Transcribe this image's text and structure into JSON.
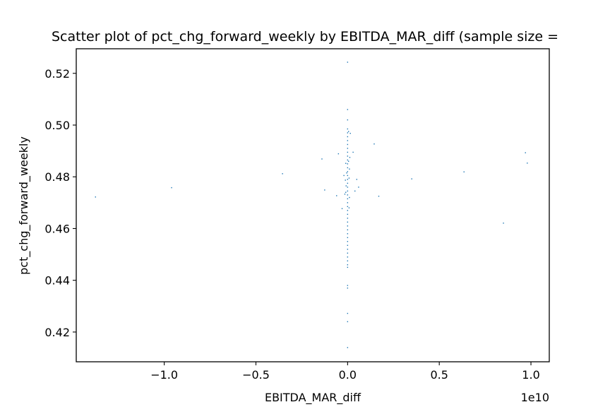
{
  "chart_data": {
    "type": "scatter",
    "title": "Scatter plot of pct_chg_forward_weekly by EBITDA_MAR_diff (sample size = ",
    "xlabel": "EBITDA_MAR_diff",
    "ylabel": "pct_chg_forward_weekly",
    "x_multiplier_label": "1e10",
    "xlim": [
      -1.48,
      1.1
    ],
    "ylim": [
      0.4085,
      0.5295
    ],
    "x_ticks": [
      -1.0,
      -0.5,
      0.0,
      0.5,
      1.0
    ],
    "x_tick_labels": [
      "−1.0",
      "−0.5",
      "0.0",
      "0.5",
      "1.0"
    ],
    "y_ticks": [
      0.42,
      0.44,
      0.46,
      0.48,
      0.5,
      0.52
    ],
    "y_tick_labels": [
      "0.42",
      "0.44",
      "0.46",
      "0.48",
      "0.50",
      "0.52"
    ],
    "grid": false,
    "marker_color": "#1f77b4",
    "series": [
      {
        "points": [
          [
            -1.375,
            0.4722
          ],
          [
            -0.96,
            0.4758
          ],
          [
            -0.355,
            0.4812
          ],
          [
            -0.14,
            0.4869
          ],
          [
            -0.125,
            0.4749
          ],
          [
            -0.06,
            0.4727
          ],
          [
            -0.05,
            0.4889
          ],
          [
            -0.03,
            0.4677
          ],
          [
            -0.02,
            0.4805
          ],
          [
            -0.015,
            0.4733
          ],
          [
            -0.01,
            0.4852
          ],
          [
            0.03,
            0.4895
          ],
          [
            0.04,
            0.4745
          ],
          [
            0.05,
            0.479
          ],
          [
            0.06,
            0.476
          ],
          [
            0.145,
            0.4927
          ],
          [
            0.17,
            0.4725
          ],
          [
            0.35,
            0.4792
          ],
          [
            0.635,
            0.4819
          ],
          [
            0.85,
            0.4621
          ],
          [
            0.97,
            0.4893
          ],
          [
            0.98,
            0.4853
          ],
          [
            0.0,
            0.5243
          ],
          [
            0.0,
            0.506
          ],
          [
            0.0,
            0.502
          ],
          [
            0.0,
            0.4985
          ],
          [
            0.0,
            0.497
          ],
          [
            0.0,
            0.4955
          ],
          [
            0.0,
            0.494
          ],
          [
            0.0,
            0.4925
          ],
          [
            0.0,
            0.491
          ],
          [
            0.0,
            0.4895
          ],
          [
            0.0,
            0.488
          ],
          [
            0.0,
            0.4865
          ],
          [
            0.0,
            0.485
          ],
          [
            0.0,
            0.4835
          ],
          [
            0.0,
            0.482
          ],
          [
            0.0,
            0.4805
          ],
          [
            0.0,
            0.479
          ],
          [
            0.0,
            0.4775
          ],
          [
            0.0,
            0.476
          ],
          [
            0.0,
            0.4745
          ],
          [
            0.0,
            0.473
          ],
          [
            0.0,
            0.4715
          ],
          [
            0.0,
            0.47
          ],
          [
            0.0,
            0.4685
          ],
          [
            0.0,
            0.467
          ],
          [
            0.0,
            0.4655
          ],
          [
            0.0,
            0.464
          ],
          [
            0.0,
            0.4625
          ],
          [
            0.0,
            0.461
          ],
          [
            0.0,
            0.4595
          ],
          [
            0.0,
            0.458
          ],
          [
            0.0,
            0.4565
          ],
          [
            0.0,
            0.455
          ],
          [
            0.0,
            0.4535
          ],
          [
            0.0,
            0.452
          ],
          [
            0.0,
            0.4505
          ],
          [
            0.0,
            0.449
          ],
          [
            0.0,
            0.4475
          ],
          [
            0.0,
            0.446
          ],
          [
            0.0,
            0.445
          ],
          [
            0.0,
            0.438
          ],
          [
            0.0,
            0.437
          ],
          [
            0.0,
            0.4272
          ],
          [
            0.0,
            0.424
          ],
          [
            0.0,
            0.414
          ],
          [
            0.005,
            0.4975
          ],
          [
            0.005,
            0.486
          ],
          [
            -0.005,
            0.4815
          ],
          [
            0.008,
            0.4795
          ],
          [
            -0.008,
            0.4765
          ],
          [
            0.01,
            0.483
          ],
          [
            -0.01,
            0.474
          ],
          [
            0.012,
            0.4875
          ],
          [
            0.015,
            0.4968
          ],
          [
            -0.012,
            0.4787
          ],
          [
            0.01,
            0.472
          ],
          [
            0.008,
            0.468
          ]
        ]
      }
    ]
  }
}
